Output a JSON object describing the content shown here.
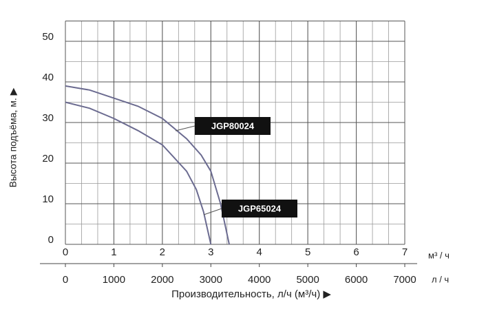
{
  "chart_data": {
    "type": "line",
    "ylabel": "Высота подъёма, м. ▶",
    "xlabel": "Производительность, л/ч (м³/ч) ▶",
    "xunit": "м³ / ч",
    "x2unit": "л / ч",
    "xlim": [
      0,
      7
    ],
    "xticks": [
      0,
      1,
      2,
      3,
      4,
      5,
      6,
      7
    ],
    "x2lim": [
      0,
      7000
    ],
    "x2ticks": [
      0,
      1000,
      2000,
      3000,
      4000,
      5000,
      6000,
      7000
    ],
    "ylim": [
      0,
      55
    ],
    "yticks": [
      0,
      10,
      20,
      30,
      40,
      50
    ],
    "grid": true,
    "series": [
      {
        "name": "JGP80024",
        "color": "#6b6b90",
        "x": [
          0,
          0.5,
          1,
          1.5,
          2,
          2.5,
          2.8,
          3,
          3.2,
          3.38
        ],
        "values": [
          39,
          38,
          36,
          34,
          31,
          26,
          22,
          18,
          10,
          0
        ]
      },
      {
        "name": "JGP65024",
        "color": "#6b6b90",
        "x": [
          0,
          0.5,
          1,
          1.5,
          2,
          2.5,
          2.7,
          2.85,
          3.0
        ],
        "values": [
          35,
          33.5,
          31,
          28,
          24.5,
          18,
          13.5,
          8,
          0
        ]
      }
    ]
  }
}
